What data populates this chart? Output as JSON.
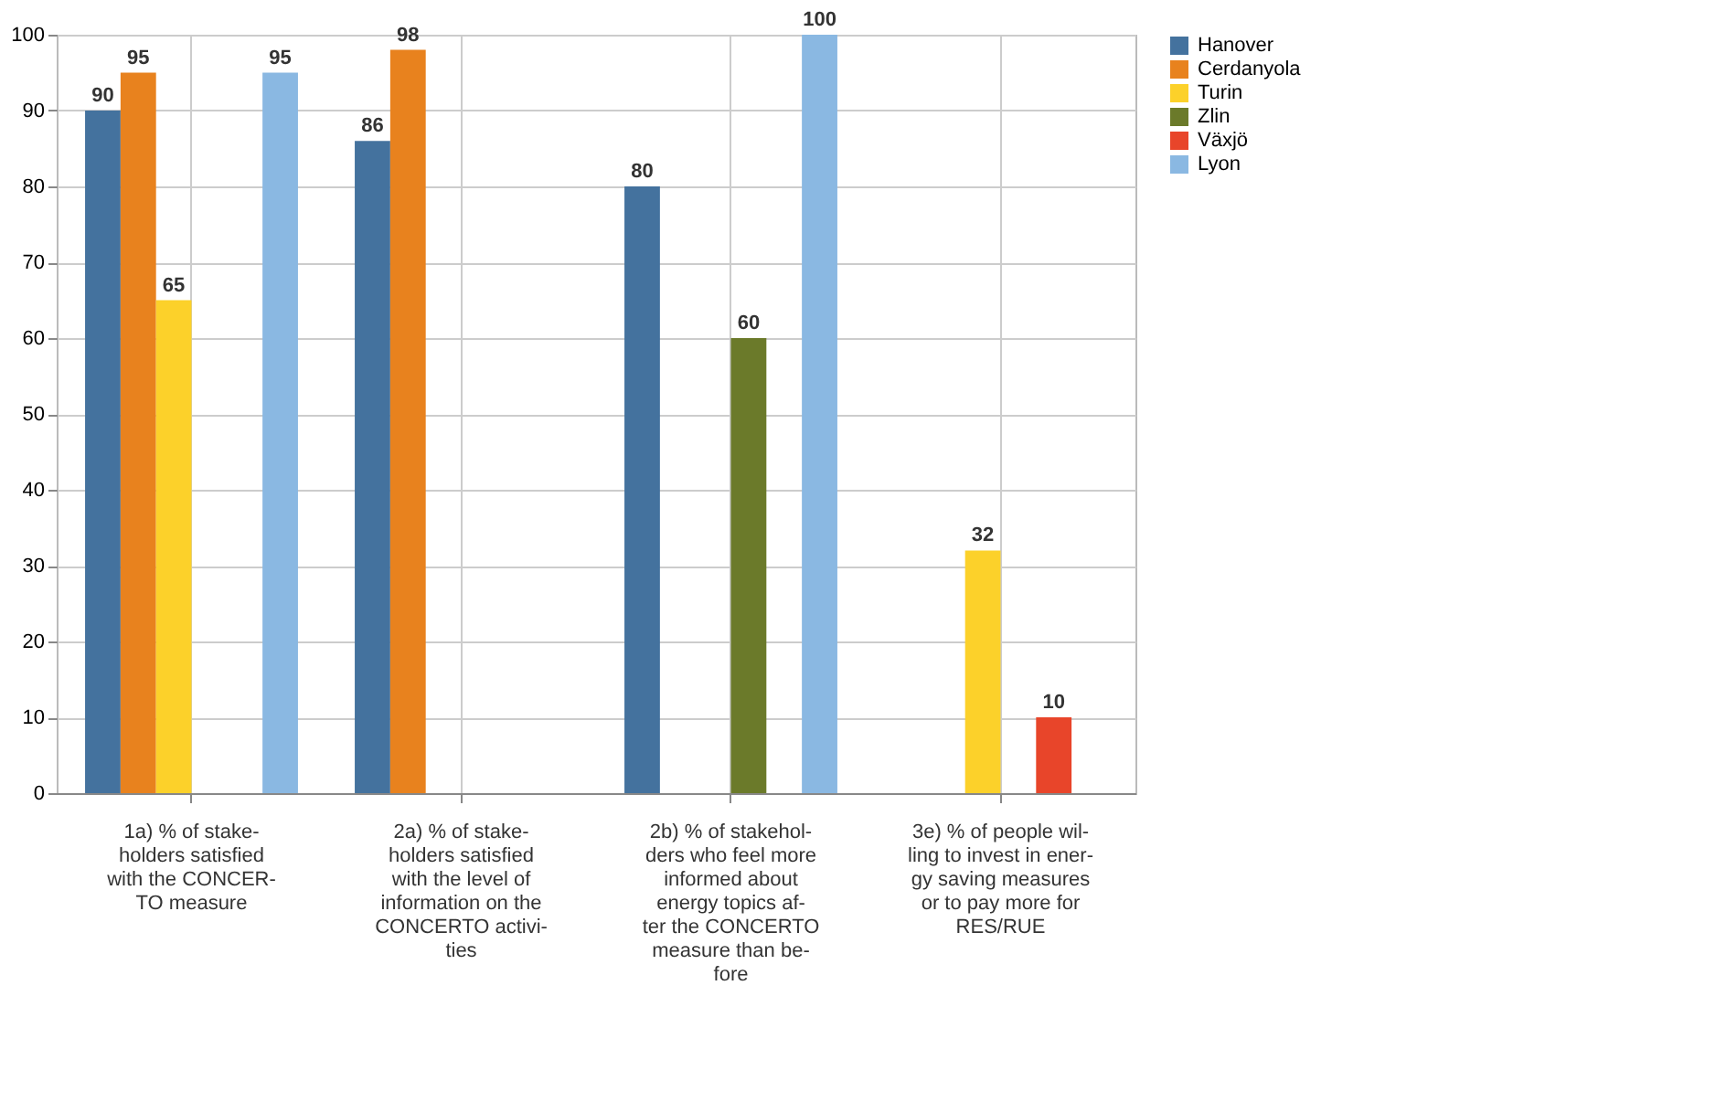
{
  "chart_data": {
    "type": "bar",
    "categories": [
      "1a) % of stake-\nholders satisfied\nwith the CONCER-\nTO measure",
      "2a) % of stake-\nholders satisfied\nwith the level of\ninformation on the\nCONCERTO activi-\nties",
      "2b) % of stakehol-\nders who feel more\ninformed about\nenergy topics af-\nter the CONCERTO\nmeasure than be-\nfore",
      "3e) % of people wil-\nling to invest in ener-\ngy saving measures\nor to pay more for\nRES/RUE"
    ],
    "series": [
      {
        "name": "Hanover",
        "color": "#44729e",
        "values": [
          90,
          86,
          80,
          null
        ]
      },
      {
        "name": "Cerdanyola",
        "color": "#e8821e",
        "values": [
          95,
          98,
          null,
          null
        ]
      },
      {
        "name": "Turin",
        "color": "#fcd12a",
        "values": [
          65,
          null,
          null,
          32
        ]
      },
      {
        "name": "Zlin",
        "color": "#6b7a2a",
        "values": [
          null,
          null,
          60,
          null
        ]
      },
      {
        "name": "Växjö",
        "color": "#e8452a",
        "values": [
          null,
          null,
          null,
          10
        ]
      },
      {
        "name": "Lyon",
        "color": "#8ab8e2",
        "values": [
          95,
          null,
          100,
          null
        ]
      }
    ],
    "ylim": [
      0,
      100
    ],
    "yticks": [
      0,
      10,
      20,
      30,
      40,
      50,
      60,
      70,
      80,
      90,
      100
    ],
    "grid": true,
    "legend": "right",
    "data_labels": true
  }
}
